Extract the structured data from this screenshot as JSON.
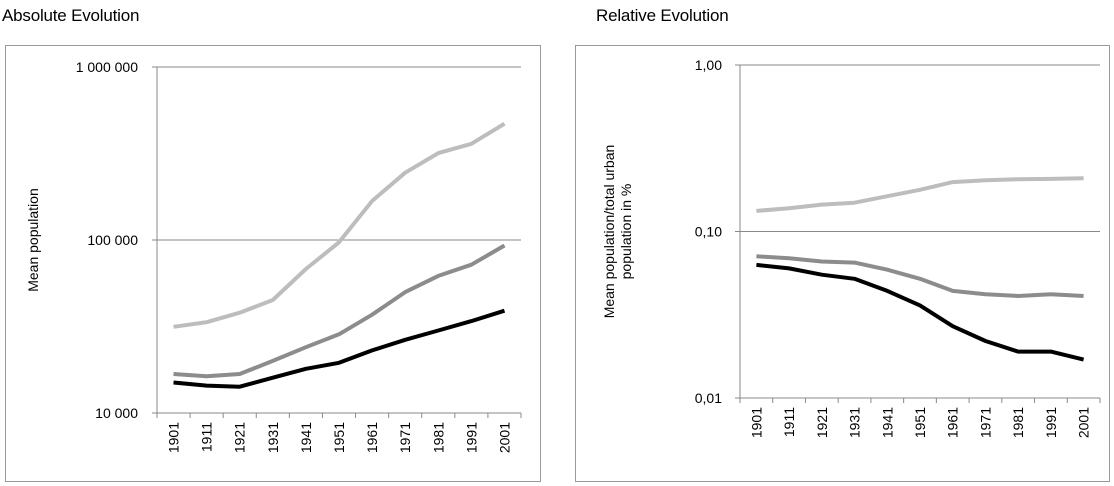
{
  "chart_data": [
    {
      "type": "line",
      "title": "Absolute Evolution",
      "ylabel": "Mean population",
      "xlabel": "",
      "yscale": "log",
      "ylim": [
        10000,
        1000000
      ],
      "y_ticks": [
        10000,
        100000,
        1000000
      ],
      "y_tick_labels": [
        "10 000",
        "100 000",
        "1 000 000"
      ],
      "x": [
        "1901",
        "1911",
        "1921",
        "1931",
        "1941",
        "1951",
        "1961",
        "1971",
        "1981",
        "1991",
        "2001"
      ],
      "grid": "horizontal at major ticks",
      "series": [
        {
          "color": "#bdbdbd",
          "values": [
            31500,
            33500,
            38000,
            45000,
            68000,
            97000,
            168000,
            245000,
            318000,
            360000,
            470000
          ]
        },
        {
          "color": "#8c8c8c",
          "values": [
            16800,
            16300,
            16800,
            20000,
            24000,
            28500,
            37000,
            50000,
            62000,
            72000,
            93000
          ]
        },
        {
          "color": "#000000",
          "values": [
            15000,
            14400,
            14200,
            16000,
            18000,
            19500,
            23000,
            26500,
            30000,
            34000,
            39000
          ]
        }
      ]
    },
    {
      "type": "line",
      "title": "Relative Evolution",
      "ylabel": "Mean population/total urban population in %",
      "xlabel": "",
      "yscale": "log",
      "ylim": [
        0.01,
        1.0
      ],
      "y_ticks": [
        0.01,
        0.1,
        1.0
      ],
      "y_tick_labels": [
        "0,01",
        "0,10",
        "1,00"
      ],
      "x": [
        "1901",
        "1911",
        "1921",
        "1931",
        "1941",
        "1951",
        "1961",
        "1971",
        "1981",
        "1991",
        "2001"
      ],
      "grid": "horizontal at major ticks",
      "series": [
        {
          "color": "#bdbdbd",
          "values": [
            0.133,
            0.138,
            0.145,
            0.149,
            0.163,
            0.178,
            0.198,
            0.203,
            0.206,
            0.207,
            0.209
          ]
        },
        {
          "color": "#8c8c8c",
          "values": [
            0.071,
            0.069,
            0.066,
            0.065,
            0.059,
            0.052,
            0.044,
            0.042,
            0.041,
            0.042,
            0.041
          ]
        },
        {
          "color": "#000000",
          "values": [
            0.063,
            0.06,
            0.055,
            0.052,
            0.044,
            0.036,
            0.027,
            0.022,
            0.019,
            0.019,
            0.017
          ]
        }
      ]
    }
  ]
}
